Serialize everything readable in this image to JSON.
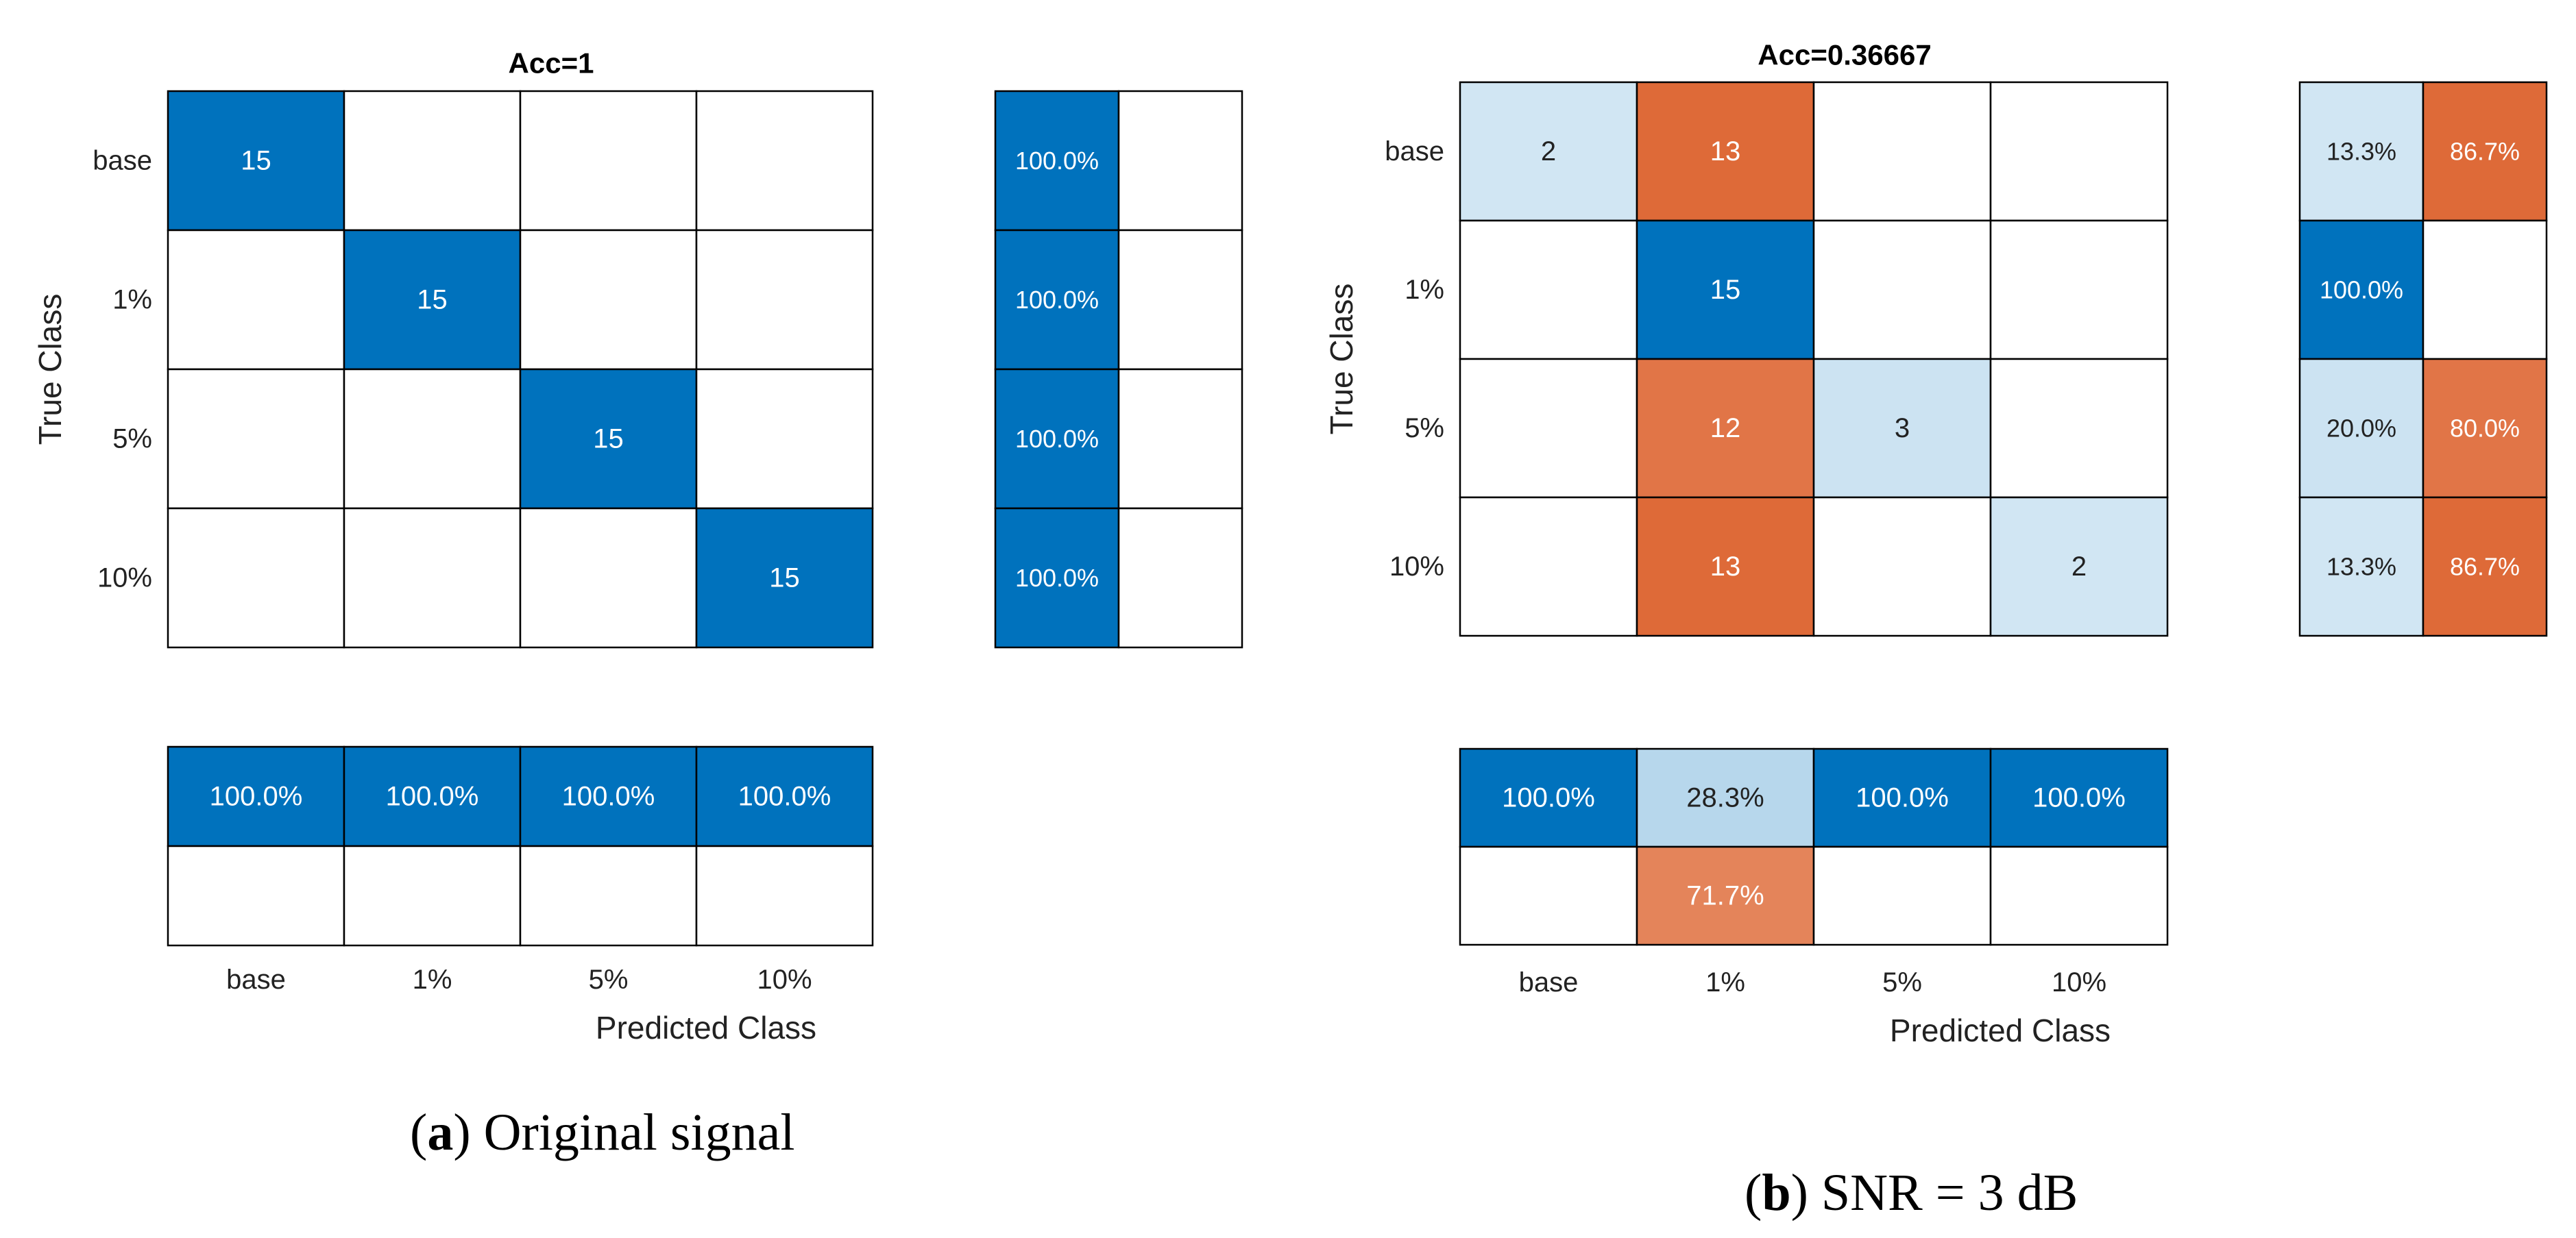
{
  "colors": {
    "correct_strong": "#0072BD",
    "correct_light": "#D2E4F3",
    "error_strong": "#D95319",
    "grid": "#000000",
    "background": "#ffffff",
    "text_dark": "#222222",
    "text_light": "#ffffff"
  },
  "captions": {
    "a_letter": "a",
    "a_rest": ") Original signal",
    "b_letter": "b",
    "b_rest": ") SNR = 3 dB"
  },
  "chart_data": [
    {
      "type": "confusion_matrix",
      "panel": "a",
      "title": "Acc=1",
      "xlabel": "Predicted Class",
      "ylabel": "True Class",
      "classes": [
        "base",
        "1%",
        "5%",
        "10%"
      ],
      "matrix": [
        [
          15,
          0,
          0,
          0
        ],
        [
          0,
          15,
          0,
          0
        ],
        [
          0,
          0,
          15,
          0
        ],
        [
          0,
          0,
          0,
          15
        ]
      ],
      "row_summary": [
        [
          "100.0%",
          ""
        ],
        [
          "100.0%",
          ""
        ],
        [
          "100.0%",
          ""
        ],
        [
          "100.0%",
          ""
        ]
      ],
      "col_summary": [
        [
          "100.0%",
          ""
        ],
        [
          "100.0%",
          ""
        ],
        [
          "100.0%",
          ""
        ],
        [
          "100.0%",
          ""
        ]
      ]
    },
    {
      "type": "confusion_matrix",
      "panel": "b",
      "title": "Acc=0.36667",
      "xlabel": "Predicted Class",
      "ylabel": "True Class",
      "classes": [
        "base",
        "1%",
        "5%",
        "10%"
      ],
      "matrix": [
        [
          2,
          13,
          0,
          0
        ],
        [
          0,
          15,
          0,
          0
        ],
        [
          0,
          12,
          3,
          0
        ],
        [
          0,
          13,
          0,
          2
        ]
      ],
      "row_summary": [
        [
          "13.3%",
          "86.7%"
        ],
        [
          "100.0%",
          ""
        ],
        [
          "20.0%",
          "80.0%"
        ],
        [
          "13.3%",
          "86.7%"
        ]
      ],
      "col_summary": [
        [
          "100.0%",
          ""
        ],
        [
          "28.3%",
          "71.7%"
        ],
        [
          "100.0%",
          ""
        ],
        [
          "100.0%",
          ""
        ]
      ]
    }
  ]
}
